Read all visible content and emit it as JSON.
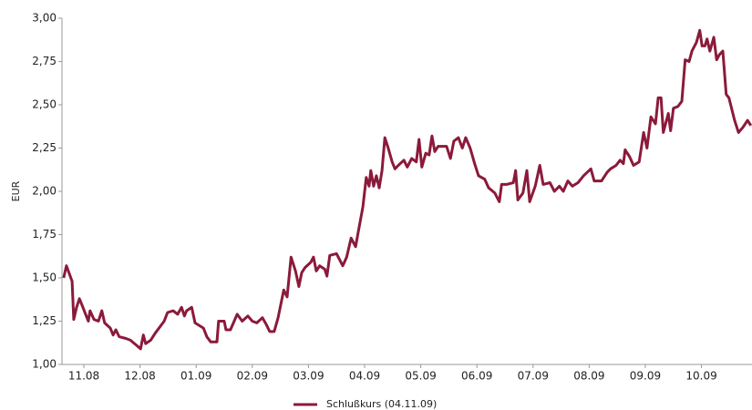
{
  "chart_data": {
    "type": "line",
    "y_label": "EUR",
    "xlim": [
      -0.39,
      11.9
    ],
    "xticks": [
      {
        "value": 0,
        "label": "11.08"
      },
      {
        "value": 1,
        "label": "12.08"
      },
      {
        "value": 2,
        "label": "01.09"
      },
      {
        "value": 3,
        "label": "02.09"
      },
      {
        "value": 4,
        "label": "03.09"
      },
      {
        "value": 5,
        "label": "04.09"
      },
      {
        "value": 6,
        "label": "05.09"
      },
      {
        "value": 7,
        "label": "06.09"
      },
      {
        "value": 8,
        "label": "07.09"
      },
      {
        "value": 9,
        "label": "08.09"
      },
      {
        "value": 10,
        "label": "09.09"
      },
      {
        "value": 11,
        "label": "10.09"
      }
    ],
    "ylim": [
      1,
      3
    ],
    "yticks": [
      {
        "value": 1,
        "label": "1,00"
      },
      {
        "value": 1.25,
        "label": "1,25"
      },
      {
        "value": 1.5,
        "label": "1,50"
      },
      {
        "value": 1.75,
        "label": "1,75"
      },
      {
        "value": 2,
        "label": "2,00"
      },
      {
        "value": 2.25,
        "label": "2,25"
      },
      {
        "value": 2.5,
        "label": "2,50"
      },
      {
        "value": 2.75,
        "label": "2,75"
      },
      {
        "value": 3,
        "label": "3,00"
      }
    ],
    "series": [
      {
        "name": "Schlußkurs (04.11.09)",
        "color": "#8b1a3a",
        "x": [
          -0.36,
          -0.31,
          -0.21,
          -0.18,
          -0.13,
          -0.08,
          -0.03,
          0.03,
          0.08,
          0.11,
          0.18,
          0.26,
          0.32,
          0.37,
          0.47,
          0.52,
          0.57,
          0.63,
          0.75,
          0.83,
          0.94,
          1.01,
          1.06,
          1.1,
          1.19,
          1.27,
          1.43,
          1.49,
          1.59,
          1.67,
          1.74,
          1.79,
          1.83,
          1.92,
          1.98,
          2.13,
          2.19,
          2.26,
          2.37,
          2.4,
          2.5,
          2.53,
          2.61,
          2.73,
          2.82,
          2.92,
          3.0,
          3.08,
          3.18,
          3.25,
          3.31,
          3.39,
          3.46,
          3.56,
          3.62,
          3.69,
          3.77,
          3.83,
          3.88,
          3.94,
          4.04,
          4.09,
          4.14,
          4.2,
          4.29,
          4.33,
          4.38,
          4.5,
          4.61,
          4.68,
          4.76,
          4.84,
          4.89,
          4.97,
          5.03,
          5.08,
          5.11,
          5.16,
          5.21,
          5.26,
          5.31,
          5.36,
          5.42,
          5.49,
          5.54,
          5.6,
          5.7,
          5.76,
          5.84,
          5.92,
          5.97,
          6.02,
          6.09,
          6.15,
          6.2,
          6.25,
          6.31,
          6.46,
          6.53,
          6.59,
          6.67,
          6.74,
          6.8,
          6.88,
          6.96,
          7.03,
          7.14,
          7.21,
          7.32,
          7.4,
          7.44,
          7.53,
          7.65,
          7.69,
          7.73,
          7.82,
          7.89,
          7.94,
          8.04,
          8.12,
          8.18,
          8.3,
          8.38,
          8.47,
          8.54,
          8.62,
          8.7,
          8.8,
          8.9,
          9.03,
          9.09,
          9.22,
          9.32,
          9.38,
          9.48,
          9.55,
          9.61,
          9.64,
          9.72,
          9.79,
          9.89,
          9.97,
          10.03,
          10.1,
          10.18,
          10.23,
          10.28,
          10.32,
          10.41,
          10.45,
          10.5,
          10.58,
          10.65,
          10.71,
          10.78,
          10.83,
          10.91,
          10.97,
          11.01,
          11.06,
          11.1,
          11.15,
          11.22,
          11.27,
          11.32,
          11.38,
          11.44,
          11.49,
          11.59,
          11.66,
          11.74,
          11.82,
          11.88
        ],
        "values": [
          1.5,
          1.57,
          1.48,
          1.26,
          1.33,
          1.38,
          1.34,
          1.29,
          1.25,
          1.31,
          1.26,
          1.25,
          1.31,
          1.24,
          1.21,
          1.17,
          1.2,
          1.16,
          1.15,
          1.14,
          1.11,
          1.09,
          1.17,
          1.12,
          1.14,
          1.18,
          1.25,
          1.3,
          1.31,
          1.29,
          1.33,
          1.28,
          1.31,
          1.33,
          1.24,
          1.21,
          1.16,
          1.13,
          1.13,
          1.25,
          1.25,
          1.2,
          1.2,
          1.29,
          1.25,
          1.28,
          1.25,
          1.24,
          1.27,
          1.23,
          1.19,
          1.19,
          1.27,
          1.43,
          1.39,
          1.62,
          1.54,
          1.45,
          1.53,
          1.56,
          1.59,
          1.62,
          1.54,
          1.57,
          1.55,
          1.51,
          1.63,
          1.64,
          1.57,
          1.62,
          1.73,
          1.68,
          1.77,
          1.91,
          2.08,
          2.03,
          2.12,
          2.03,
          2.09,
          2.02,
          2.12,
          2.31,
          2.25,
          2.17,
          2.13,
          2.15,
          2.18,
          2.14,
          2.19,
          2.17,
          2.3,
          2.14,
          2.22,
          2.21,
          2.32,
          2.23,
          2.26,
          2.26,
          2.19,
          2.29,
          2.31,
          2.25,
          2.31,
          2.25,
          2.16,
          2.09,
          2.07,
          2.02,
          1.99,
          1.94,
          2.04,
          2.04,
          2.05,
          2.12,
          1.95,
          1.99,
          2.12,
          1.94,
          2.03,
          2.15,
          2.04,
          2.05,
          2.0,
          2.03,
          2.0,
          2.06,
          2.03,
          2.05,
          2.09,
          2.13,
          2.06,
          2.06,
          2.11,
          2.13,
          2.15,
          2.18,
          2.16,
          2.24,
          2.2,
          2.15,
          2.17,
          2.34,
          2.25,
          2.43,
          2.39,
          2.54,
          2.54,
          2.34,
          2.45,
          2.35,
          2.48,
          2.49,
          2.52,
          2.76,
          2.75,
          2.81,
          2.86,
          2.93,
          2.84,
          2.84,
          2.88,
          2.81,
          2.89,
          2.76,
          2.79,
          2.81,
          2.56,
          2.54,
          2.41,
          2.34,
          2.37,
          2.41,
          2.38
        ]
      }
    ]
  }
}
